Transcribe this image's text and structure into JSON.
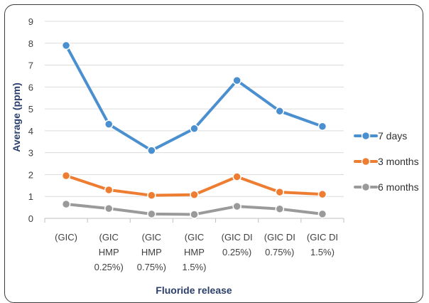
{
  "chart_data": {
    "type": "line",
    "title": "",
    "xlabel": "Fluoride release",
    "ylabel": "Average (ppm)",
    "ylim": [
      0,
      9
    ],
    "yticks": [
      0,
      1,
      2,
      3,
      4,
      5,
      6,
      7,
      8,
      9
    ],
    "grid": true,
    "legend_position": "right",
    "categories": [
      [
        "(GIC)"
      ],
      [
        "(GIC",
        "HMP",
        "0.25%)"
      ],
      [
        "(GIC",
        "HMP",
        "0.75%)"
      ],
      [
        "(GIC",
        "HMP",
        "1.5%)"
      ],
      [
        "(GIC DI",
        "0.25%)"
      ],
      [
        "(GIC DI",
        "0.75%)"
      ],
      [
        "(GIC DI",
        "1.5%)"
      ]
    ],
    "series": [
      {
        "name": "7 days",
        "color": "#4a8fd0",
        "values": [
          7.9,
          4.3,
          3.1,
          4.1,
          6.3,
          4.9,
          4.2
        ]
      },
      {
        "name": "3 months",
        "color": "#ee7d31",
        "values": [
          1.95,
          1.3,
          1.05,
          1.08,
          1.9,
          1.2,
          1.1
        ]
      },
      {
        "name": "6 months",
        "color": "#9a9a9a",
        "values": [
          0.65,
          0.45,
          0.2,
          0.18,
          0.55,
          0.43,
          0.2
        ]
      }
    ]
  }
}
